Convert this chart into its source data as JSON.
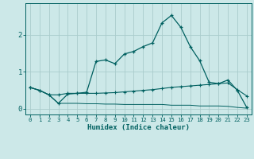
{
  "title": "",
  "xlabel": "Humidex (Indice chaleur)",
  "background_color": "#cce8e8",
  "grid_color": "#aacccc",
  "line_color": "#006060",
  "x_values": [
    0,
    1,
    2,
    3,
    4,
    5,
    6,
    7,
    8,
    9,
    10,
    11,
    12,
    13,
    14,
    15,
    16,
    17,
    18,
    19,
    20,
    21,
    22,
    23
  ],
  "line1_y": [
    0.58,
    0.5,
    0.38,
    0.15,
    0.4,
    0.42,
    0.45,
    1.28,
    1.32,
    1.22,
    1.48,
    1.55,
    1.68,
    1.78,
    2.32,
    2.52,
    2.2,
    1.68,
    1.3,
    0.72,
    0.68,
    0.78,
    0.5,
    0.04
  ],
  "line2_y": [
    0.58,
    0.5,
    0.38,
    0.38,
    0.42,
    0.42,
    0.42,
    0.42,
    0.43,
    0.44,
    0.46,
    0.48,
    0.5,
    0.52,
    0.55,
    0.58,
    0.6,
    0.62,
    0.64,
    0.66,
    0.68,
    0.7,
    0.52,
    0.35
  ],
  "line3_y": [
    0.58,
    0.5,
    0.38,
    0.15,
    0.15,
    0.15,
    0.14,
    0.14,
    0.13,
    0.13,
    0.12,
    0.12,
    0.12,
    0.12,
    0.12,
    0.1,
    0.1,
    0.1,
    0.08,
    0.08,
    0.08,
    0.07,
    0.04,
    0.02
  ],
  "ylim": [
    -0.15,
    2.85
  ],
  "yticks": [
    0,
    1,
    2
  ],
  "xlim": [
    -0.5,
    23.5
  ],
  "figwidth": 3.2,
  "figheight": 2.0,
  "dpi": 100
}
